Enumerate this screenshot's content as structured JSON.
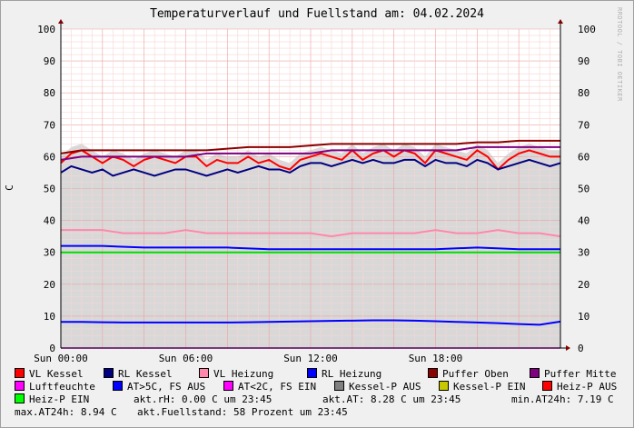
{
  "chart_data": {
    "type": "line",
    "title": "Temperaturverlauf und Fuellstand am: 04.02.2024",
    "side_label": "RRDTOOL / TOBI OETIKER",
    "ylabel": "C",
    "ylim": [
      0,
      100
    ],
    "yticks": [
      "0",
      "10",
      "20",
      "30",
      "40",
      "50",
      "60",
      "70",
      "80",
      "90",
      "100"
    ],
    "xlim": [
      0,
      24
    ],
    "xticks": [
      {
        "x": 0,
        "label": "Sun 00:00"
      },
      {
        "x": 6,
        "label": "Sun 06:00"
      },
      {
        "x": 12,
        "label": "Sun 12:00"
      },
      {
        "x": 18,
        "label": "Sun 18:00"
      }
    ],
    "fill_color": "#d8d8d8",
    "series": [
      {
        "name": "VL Kessel",
        "color": "#ff0000",
        "x": [
          0,
          0.5,
          1,
          1.5,
          2,
          2.5,
          3,
          3.5,
          4,
          4.5,
          5,
          5.5,
          6,
          6.5,
          7,
          7.5,
          8,
          8.5,
          9,
          9.5,
          10,
          10.5,
          11,
          11.5,
          12,
          12.5,
          13,
          13.5,
          14,
          14.5,
          15,
          15.5,
          16,
          16.5,
          17,
          17.5,
          18,
          18.5,
          19,
          19.5,
          20,
          20.5,
          21,
          21.5,
          22,
          22.5,
          23,
          23.5,
          24
        ],
        "y": [
          58,
          61,
          62,
          60,
          58,
          60,
          59,
          57,
          59,
          60,
          59,
          58,
          60,
          60,
          57,
          59,
          58,
          58,
          60,
          58,
          59,
          57,
          56,
          59,
          60,
          61,
          60,
          59,
          62,
          59,
          61,
          62,
          60,
          62,
          61,
          58,
          62,
          61,
          60,
          59,
          62,
          60,
          56,
          59,
          61,
          62,
          61,
          60,
          60
        ]
      },
      {
        "name": "RL Kessel",
        "color": "#000080",
        "x": [
          0,
          0.5,
          1,
          1.5,
          2,
          2.5,
          3,
          3.5,
          4,
          4.5,
          5,
          5.5,
          6,
          6.5,
          7,
          7.5,
          8,
          8.5,
          9,
          9.5,
          10,
          10.5,
          11,
          11.5,
          12,
          12.5,
          13,
          13.5,
          14,
          14.5,
          15,
          15.5,
          16,
          16.5,
          17,
          17.5,
          18,
          18.5,
          19,
          19.5,
          20,
          20.5,
          21,
          21.5,
          22,
          22.5,
          23,
          23.5,
          24
        ],
        "y": [
          55,
          57,
          56,
          55,
          56,
          54,
          55,
          56,
          55,
          54,
          55,
          56,
          56,
          55,
          54,
          55,
          56,
          55,
          56,
          57,
          56,
          56,
          55,
          57,
          58,
          58,
          57,
          58,
          59,
          58,
          59,
          58,
          58,
          59,
          59,
          57,
          59,
          58,
          58,
          57,
          59,
          58,
          56,
          57,
          58,
          59,
          58,
          57,
          58
        ]
      },
      {
        "name": "VL Heizung",
        "color": "#ff88aa",
        "x": [
          0,
          1,
          2,
          3,
          4,
          5,
          6,
          7,
          8,
          9,
          10,
          11,
          12,
          13,
          14,
          15,
          16,
          17,
          18,
          19,
          20,
          21,
          22,
          23,
          24
        ],
        "y": [
          37,
          37,
          37,
          36,
          36,
          36,
          37,
          36,
          36,
          36,
          36,
          36,
          36,
          35,
          36,
          36,
          36,
          36,
          37,
          36,
          36,
          37,
          36,
          36,
          35
        ]
      },
      {
        "name": "RL Heizung",
        "color": "#0000ff",
        "x": [
          0,
          2,
          4,
          6,
          8,
          10,
          12,
          14,
          16,
          18,
          20,
          22,
          24
        ],
        "y": [
          32,
          32,
          31.5,
          31.5,
          31.5,
          31,
          31,
          31,
          31,
          31,
          31.5,
          31,
          31
        ]
      },
      {
        "name": "Puffer Oben",
        "color": "#8b0000",
        "x": [
          0,
          1,
          2,
          3,
          4,
          5,
          6,
          7,
          8,
          9,
          10,
          11,
          12,
          13,
          14,
          15,
          16,
          17,
          18,
          19,
          20,
          21,
          22,
          23,
          24
        ],
        "y": [
          61,
          62,
          62,
          62,
          62,
          62,
          62,
          62,
          62.5,
          63,
          63,
          63,
          63.5,
          64,
          64,
          64,
          64,
          64,
          64,
          64,
          64.5,
          64.5,
          65,
          65,
          65
        ]
      },
      {
        "name": "Puffer Mitte",
        "color": "#800080",
        "x": [
          0,
          1,
          2,
          3,
          4,
          5,
          6,
          7,
          8,
          9,
          10,
          11,
          12,
          13,
          14,
          15,
          16,
          17,
          18,
          19,
          20,
          21,
          22,
          23,
          24
        ],
        "y": [
          59,
          60,
          60,
          60,
          60,
          60,
          60,
          61,
          61,
          61,
          61,
          61,
          61,
          62,
          62,
          62,
          62,
          62,
          62,
          62,
          63,
          63,
          63,
          63,
          63
        ]
      },
      {
        "name": "Luftfeuchte",
        "color": "#ff00ff",
        "x": [
          0,
          24
        ],
        "y": [
          0,
          0
        ]
      },
      {
        "name": "Heiz-P EIN",
        "color": "#00dd00",
        "x": [
          0,
          6,
          12,
          18,
          24
        ],
        "y": [
          30,
          30,
          30,
          30,
          30
        ]
      },
      {
        "name": "AT",
        "color": "#0000ff",
        "x": [
          0,
          1,
          2,
          3,
          4,
          5,
          6,
          7,
          8,
          9,
          10,
          11,
          12,
          13,
          14,
          15,
          16,
          17,
          18,
          19,
          20,
          21,
          22,
          23,
          24
        ],
        "y": [
          8.2,
          8.2,
          8.1,
          8,
          8,
          8,
          8,
          8,
          8,
          8.1,
          8.2,
          8.3,
          8.4,
          8.5,
          8.6,
          8.7,
          8.7,
          8.6,
          8.4,
          8.2,
          8,
          7.8,
          7.5,
          7.3,
          8.3
        ]
      }
    ]
  },
  "legend": [
    {
      "label": "VL Kessel",
      "color": "#ff0000"
    },
    {
      "label": "RL Kessel",
      "color": "#000080"
    },
    {
      "label": "VL Heizung",
      "color": "#ff88aa"
    },
    {
      "label": "RL Heizung",
      "color": "#0000ff"
    },
    {
      "label": "Puffer Oben",
      "color": "#8b0000"
    },
    {
      "label": "Puffer Mitte",
      "color": "#800080"
    },
    {
      "label": "Luftfeuchte",
      "color": "#ff00ff"
    },
    {
      "label": "AT>5C, FS AUS",
      "color": "#0000ff"
    },
    {
      "label": "AT<2C, FS EIN",
      "color": "#ff00ff"
    },
    {
      "label": "Kessel-P AUS",
      "color": "#808080"
    },
    {
      "label": "Kessel-P EIN",
      "color": "#c8c800"
    },
    {
      "label": "Heiz-P AUS",
      "color": "#ff0000"
    },
    {
      "label": "Heiz-P EIN",
      "color": "#00ff00"
    }
  ],
  "stats": {
    "akt_rh": "akt.rH: 0.00 C um 23:45",
    "akt_at": "akt.AT: 8.28 C um 23:45",
    "min_at": "min.AT24h: 7.19 C",
    "max_at": "max.AT24h: 8.94 C",
    "fuellstand": "akt.Fuellstand:   58 Prozent um 23:45"
  }
}
